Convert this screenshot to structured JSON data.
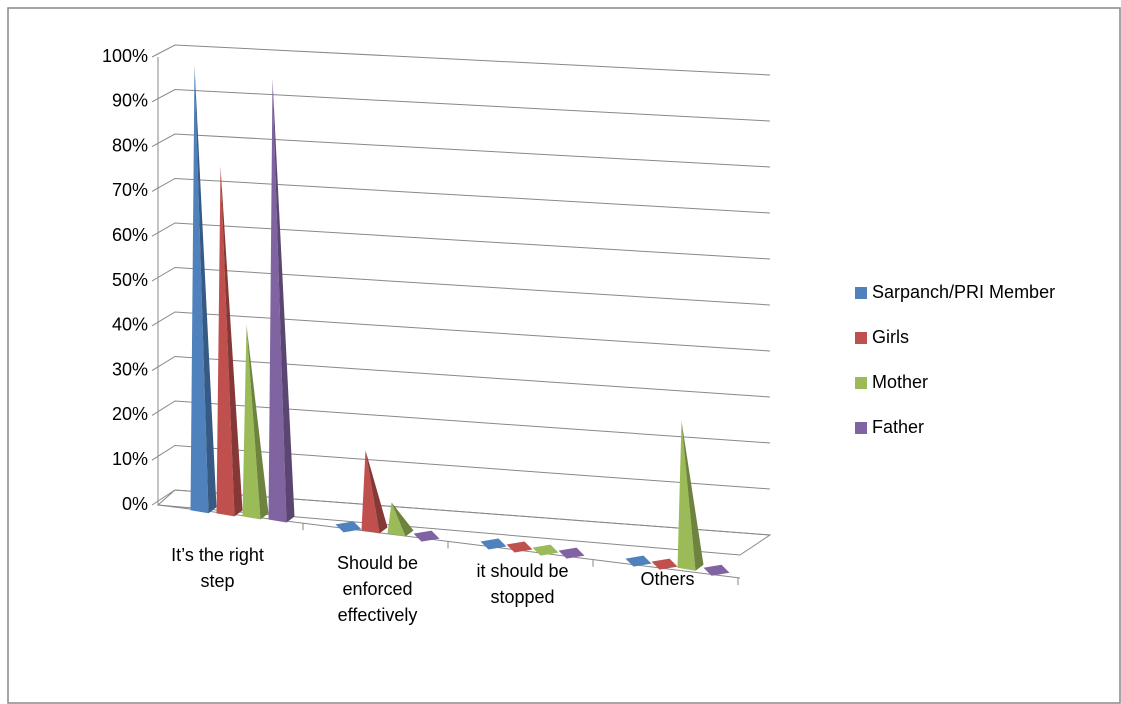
{
  "chart_data": {
    "type": "pyramid3d",
    "categories": [
      "It’s the right step",
      "Should be enforced effectively",
      "it should be stopped",
      "Others"
    ],
    "series": [
      {
        "name": "Sarpanch/PRI Member",
        "color": "#4f81bd",
        "values": [
          100,
          0,
          0,
          0
        ]
      },
      {
        "name": "Girls",
        "color": "#c0504d",
        "values": [
          78,
          18,
          0,
          0
        ]
      },
      {
        "name": "Mother",
        "color": "#9bbb59",
        "values": [
          43,
          7,
          0,
          33
        ]
      },
      {
        "name": "Father",
        "color": "#8064a2",
        "values": [
          99,
          0,
          0,
          0
        ]
      }
    ],
    "ylim": [
      0,
      100
    ],
    "yticks": [
      {
        "value": 0,
        "label": "0%"
      },
      {
        "value": 10,
        "label": "10%"
      },
      {
        "value": 20,
        "label": "20%"
      },
      {
        "value": 30,
        "label": "30%"
      },
      {
        "value": 40,
        "label": "40%"
      },
      {
        "value": 50,
        "label": "50%"
      },
      {
        "value": 60,
        "label": "60%"
      },
      {
        "value": 70,
        "label": "70%"
      },
      {
        "value": 80,
        "label": "80%"
      },
      {
        "value": 90,
        "label": "90%"
      },
      {
        "value": 100,
        "label": "100%"
      }
    ],
    "grid": true,
    "legend": "right"
  }
}
